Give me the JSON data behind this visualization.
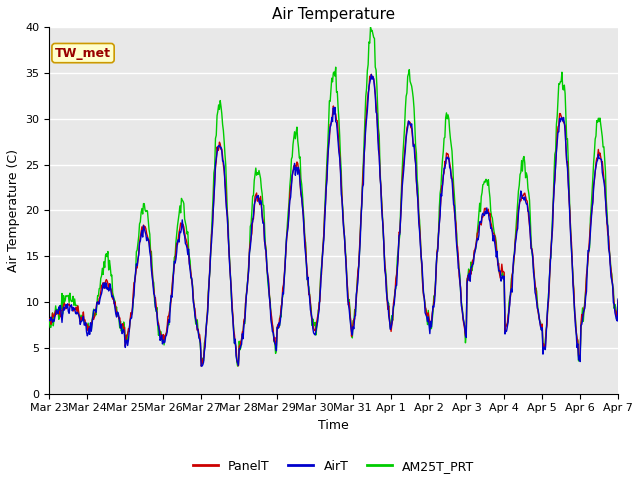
{
  "title": "Air Temperature",
  "ylabel": "Air Temperature (C)",
  "xlabel": "Time",
  "annotation": "TW_met",
  "ylim": [
    0,
    40
  ],
  "xlim": [
    0,
    15
  ],
  "background_color": "#e8e8e8",
  "series_colors": {
    "PanelT": "#cc0000",
    "AirT": "#0000cc",
    "AM25T_PRT": "#00cc00"
  },
  "x_tick_labels": [
    "Mar 23",
    "Mar 24",
    "Mar 25",
    "Mar 26",
    "Mar 27",
    "Mar 28",
    "Mar 29",
    "Mar 30",
    "Mar 31",
    "Apr 1",
    "Apr 2",
    "Apr 3",
    "Apr 4",
    "Apr 5",
    "Apr 6",
    "Apr 7"
  ],
  "yticks": [
    0,
    5,
    10,
    15,
    20,
    25,
    30,
    35,
    40
  ],
  "n_points": 720,
  "seed": 42,
  "day_min": [
    8,
    7,
    6,
    6,
    3,
    5,
    7,
    7,
    8,
    8,
    7,
    13,
    7,
    4,
    8,
    10
  ],
  "day_max": [
    10,
    12,
    18,
    18,
    27,
    22,
    25,
    31,
    35,
    30,
    26,
    20,
    22,
    31,
    26,
    12
  ],
  "green_boost": [
    1.0,
    2.5,
    2.5,
    2.5,
    4.0,
    3.0,
    3.0,
    4.0,
    5.0,
    5.0,
    4.0,
    3.0,
    3.5,
    4.0,
    4.0,
    2.0
  ],
  "title_fontsize": 11,
  "label_fontsize": 9,
  "tick_fontsize": 8,
  "legend_fontsize": 9,
  "linewidth": 1.0,
  "figsize": [
    6.4,
    4.8
  ],
  "dpi": 100
}
